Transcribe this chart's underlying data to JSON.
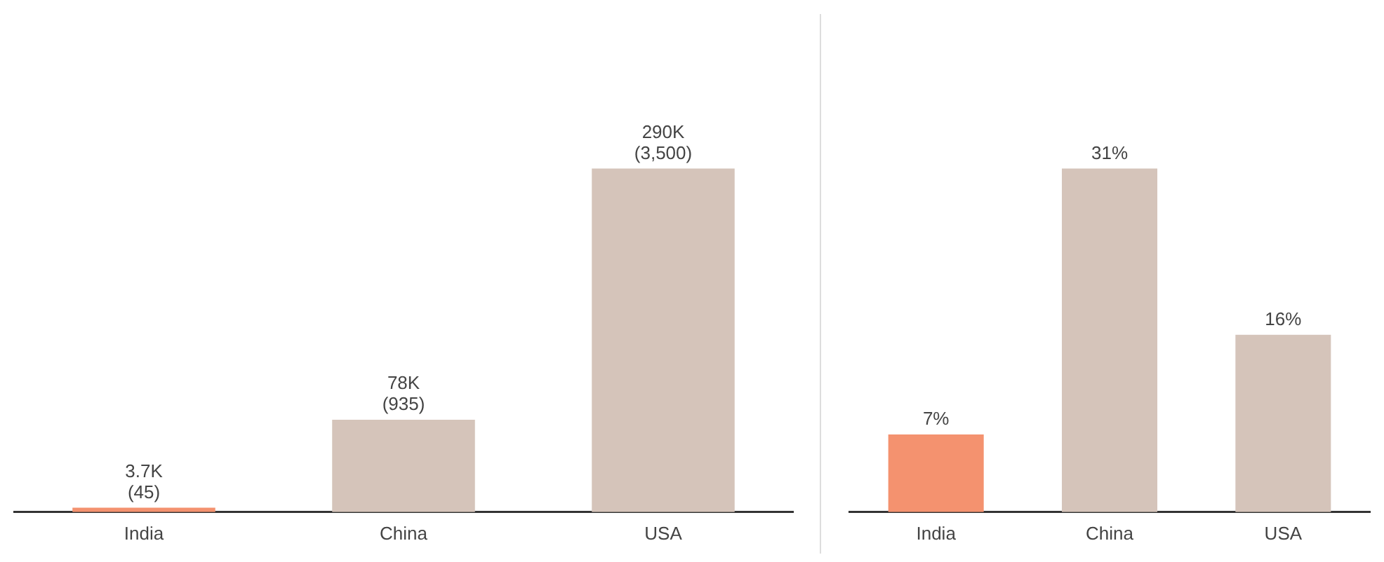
{
  "chart_data": [
    {
      "type": "bar",
      "categories": [
        "India",
        "China",
        "USA"
      ],
      "values": [
        3700,
        78000,
        290000
      ],
      "colors": [
        "#f4926f",
        "#d5c4ba",
        "#d5c4ba"
      ],
      "value_labels": [
        "3.7K\n(45)",
        "78K\n(935)",
        "290K\n(3,500)"
      ]
    },
    {
      "type": "bar",
      "categories": [
        "India",
        "China",
        "USA"
      ],
      "values": [
        7,
        31,
        16
      ],
      "colors": [
        "#f4926f",
        "#d5c4ba",
        "#d5c4ba"
      ],
      "value_labels": [
        "7%",
        "31%",
        "16%"
      ]
    }
  ]
}
